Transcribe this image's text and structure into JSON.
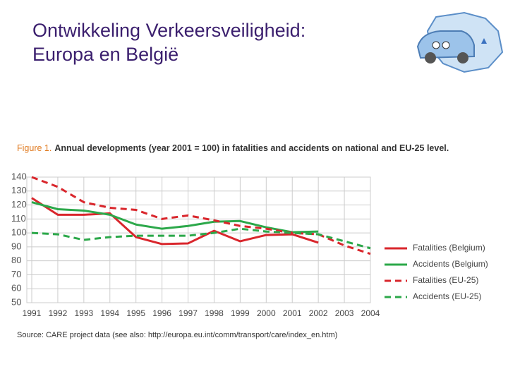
{
  "slide_title": [
    "Ontwikkeling Verkeersveiligheid:",
    "Europa en België"
  ],
  "chart_data": {
    "type": "line",
    "figure_label": "Figure 1.",
    "title": "Annual developments (year 2001 = 100) in fatalities and accidents on national and EU-25 level.",
    "source": "Source: CARE project data (see also: http://europa.eu.int/comm/transport/care/index_en.htm)",
    "categories": [
      "1991",
      "1992",
      "1993",
      "1994",
      "1995",
      "1996",
      "1997",
      "1998",
      "1999",
      "2000",
      "2001",
      "2002",
      "2003",
      "2004"
    ],
    "ylim": [
      50,
      140
    ],
    "yticks": [
      50,
      60,
      70,
      80,
      90,
      100,
      110,
      120,
      130,
      140
    ],
    "grid": true,
    "legend": "right",
    "series": [
      {
        "name": "Fatalities (Belgium)",
        "color": "#d9262c",
        "line_style": "solid",
        "values": [
          125,
          113,
          113,
          114,
          97,
          92,
          92.5,
          101.5,
          94,
          98.5,
          99,
          93,
          null,
          null
        ]
      },
      {
        "name": "Accidents (Belgium)",
        "color": "#2ca84a",
        "line_style": "solid",
        "values": [
          122,
          117,
          116,
          113,
          106,
          103,
          105,
          108,
          108.5,
          104,
          100.5,
          101,
          null,
          null
        ]
      },
      {
        "name": "Fatalities (EU-25)",
        "color": "#d9262c",
        "line_style": "dashed",
        "values": [
          140,
          133,
          122,
          118,
          116.5,
          110,
          112.5,
          109,
          105,
          103,
          100,
          99,
          91,
          85
        ]
      },
      {
        "name": "Accidents (EU-25)",
        "color": "#2ca84a",
        "line_style": "dashed",
        "values": [
          100,
          99,
          95,
          97,
          98,
          98,
          98,
          100,
          103,
          101,
          100,
          99,
          94,
          89
        ]
      }
    ]
  }
}
